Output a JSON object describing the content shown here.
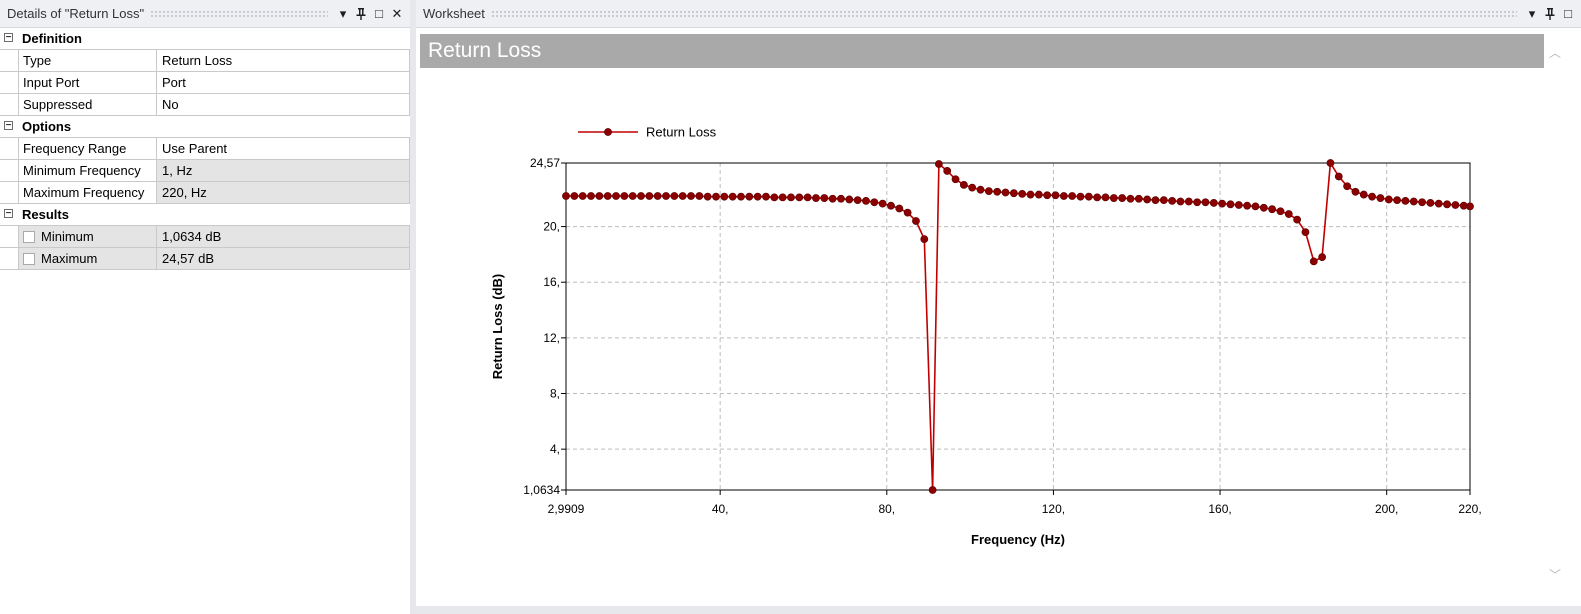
{
  "details_pane": {
    "title": "Details of \"Return Loss\"",
    "groups": [
      {
        "label": "Definition",
        "collapse_symbol": "−",
        "rows": [
          {
            "name": "Type",
            "value": "Return Loss"
          },
          {
            "name": "Input Port",
            "value": "Port"
          },
          {
            "name": "Suppressed",
            "value": "No"
          }
        ]
      },
      {
        "label": "Options",
        "collapse_symbol": "−",
        "rows": [
          {
            "name": "Frequency Range",
            "value": "Use Parent"
          },
          {
            "name": "Minimum Frequency",
            "value": "1, Hz"
          },
          {
            "name": "Maximum Frequency",
            "value": "220, Hz"
          }
        ]
      },
      {
        "label": "Results",
        "collapse_symbol": "−",
        "rows": [
          {
            "name": "Minimum",
            "value": "1,0634 dB"
          },
          {
            "name": "Maximum",
            "value": "24,57 dB"
          }
        ]
      }
    ],
    "buttons": {
      "dropdown": "▾",
      "pin": "ꟷ",
      "maximize": "□",
      "close": "✕"
    }
  },
  "worksheet_pane": {
    "title": "Worksheet",
    "buttons": {
      "dropdown": "▾",
      "pin": "ꟷ",
      "maximize": "□"
    },
    "banner_title": "Return Loss",
    "scroll_up": "︿",
    "scroll_down": "﹀"
  },
  "chart_data": {
    "type": "line",
    "title": "",
    "xlabel": "Frequency (Hz)",
    "ylabel": "Return Loss (dB)",
    "xlim": [
      2.9909,
      220
    ],
    "ylim": [
      1.0634,
      24.57
    ],
    "x_ticks": [
      {
        "value": 2.9909,
        "label": "2,9909"
      },
      {
        "value": 40,
        "label": "40,"
      },
      {
        "value": 80,
        "label": "80,"
      },
      {
        "value": 120,
        "label": "120,"
      },
      {
        "value": 160,
        "label": "160,"
      },
      {
        "value": 200,
        "label": "200,"
      },
      {
        "value": 220,
        "label": "220,"
      }
    ],
    "y_ticks": [
      {
        "value": 1.0634,
        "label": "1,0634"
      },
      {
        "value": 4,
        "label": "4,"
      },
      {
        "value": 8,
        "label": "8,"
      },
      {
        "value": 12,
        "label": "12,"
      },
      {
        "value": 16,
        "label": "16,"
      },
      {
        "value": 20,
        "label": "20,"
      },
      {
        "value": 24.57,
        "label": "24,57"
      }
    ],
    "grid": true,
    "legend_position": "top-left",
    "series": [
      {
        "name": "Return Loss",
        "color": "#c00000",
        "marker_color": "#8b0000",
        "x": [
          2.99,
          5.0,
          7.0,
          9.0,
          11.0,
          13.0,
          15.0,
          17.0,
          19.0,
          21.0,
          23.0,
          25.0,
          27.0,
          29.0,
          31.0,
          33.0,
          35.0,
          37.0,
          39.0,
          41.0,
          43.0,
          45.0,
          47.0,
          49.0,
          51.0,
          53.0,
          55.0,
          57.0,
          59.0,
          61.0,
          63.0,
          65.0,
          67.0,
          69.0,
          71.0,
          73.0,
          75.0,
          77.0,
          79.0,
          81.0,
          83.0,
          85.0,
          87.0,
          89.0,
          91.0,
          92.5,
          94.5,
          96.5,
          98.5,
          100.5,
          102.5,
          104.5,
          106.5,
          108.5,
          110.5,
          112.5,
          114.5,
          116.5,
          118.5,
          120.5,
          122.5,
          124.5,
          126.5,
          128.5,
          130.5,
          132.5,
          134.5,
          136.5,
          138.5,
          140.5,
          142.5,
          144.5,
          146.5,
          148.5,
          150.5,
          152.5,
          154.5,
          156.5,
          158.5,
          160.5,
          162.5,
          164.5,
          166.5,
          168.5,
          170.5,
          172.5,
          174.5,
          176.5,
          178.5,
          180.5,
          182.5,
          184.5,
          186.5,
          188.5,
          190.5,
          192.5,
          194.5,
          196.5,
          198.5,
          200.5,
          202.5,
          204.5,
          206.5,
          208.5,
          210.5,
          212.5,
          214.5,
          216.5,
          218.5,
          220.0
        ],
        "y": [
          22.2,
          22.2,
          22.2,
          22.2,
          22.2,
          22.2,
          22.2,
          22.2,
          22.2,
          22.2,
          22.2,
          22.2,
          22.2,
          22.2,
          22.2,
          22.2,
          22.2,
          22.15,
          22.15,
          22.15,
          22.15,
          22.15,
          22.15,
          22.15,
          22.15,
          22.1,
          22.1,
          22.1,
          22.1,
          22.1,
          22.05,
          22.05,
          22.0,
          22.0,
          21.95,
          21.9,
          21.85,
          21.75,
          21.65,
          21.5,
          21.3,
          21.0,
          20.4,
          19.1,
          1.0634,
          24.5,
          24.0,
          23.4,
          23.0,
          22.8,
          22.65,
          22.55,
          22.5,
          22.45,
          22.4,
          22.35,
          22.3,
          22.3,
          22.25,
          22.25,
          22.2,
          22.2,
          22.15,
          22.15,
          22.1,
          22.1,
          22.05,
          22.05,
          22.0,
          22.0,
          21.95,
          21.9,
          21.9,
          21.85,
          21.8,
          21.8,
          21.75,
          21.75,
          21.7,
          21.65,
          21.6,
          21.55,
          21.5,
          21.45,
          21.35,
          21.25,
          21.1,
          20.9,
          20.5,
          19.6,
          17.5,
          17.8,
          24.57,
          23.6,
          22.9,
          22.5,
          22.3,
          22.15,
          22.05,
          21.95,
          21.9,
          21.85,
          21.8,
          21.75,
          21.7,
          21.65,
          21.6,
          21.55,
          21.5,
          21.45
        ]
      }
    ]
  }
}
